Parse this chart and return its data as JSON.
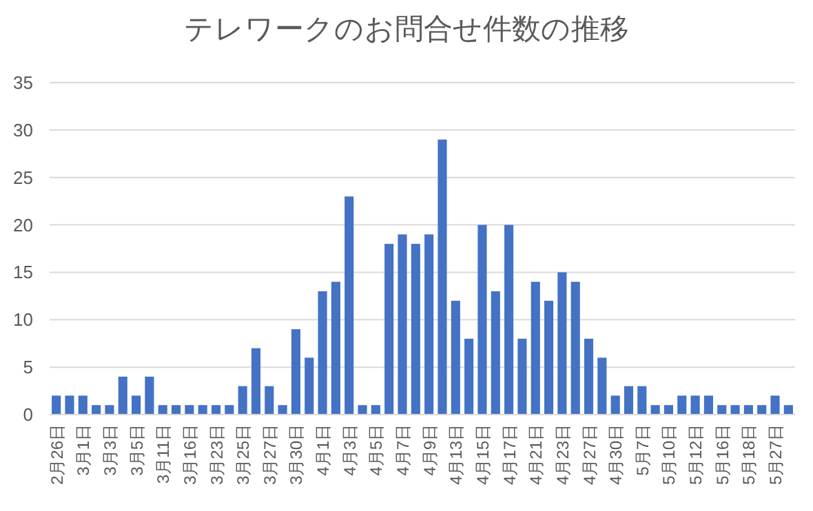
{
  "chart_data": {
    "type": "bar",
    "title": "テレワークのお問合せ件数の推移",
    "categories": [
      "2月26日",
      null,
      "3月1日",
      null,
      "3月3日",
      null,
      "3月5日",
      null,
      "3月11日",
      null,
      "3月16日",
      null,
      "3月23日",
      null,
      "3月25日",
      null,
      "3月27日",
      null,
      "3月30日",
      null,
      "4月1日",
      null,
      "4月3日",
      null,
      "4月5日",
      null,
      "4月7日",
      null,
      "4月9日",
      null,
      "4月13日",
      null,
      "4月15日",
      null,
      "4月17日",
      null,
      "4月21日",
      null,
      "4月23日",
      null,
      "4月27日",
      null,
      "4月30日",
      null,
      "5月7日",
      null,
      "5月10日",
      null,
      "5月12日",
      null,
      "5月16日",
      null,
      "5月18日",
      null,
      "5月27日",
      null
    ],
    "values": [
      2,
      2,
      2,
      1,
      1,
      4,
      2,
      4,
      1,
      1,
      1,
      1,
      1,
      1,
      3,
      7,
      3,
      1,
      9,
      6,
      13,
      14,
      23,
      1,
      1,
      18,
      19,
      18,
      19,
      29,
      12,
      8,
      20,
      13,
      20,
      8,
      14,
      12,
      15,
      14,
      8,
      6,
      2,
      3,
      3,
      1,
      1,
      2,
      2,
      2,
      1,
      1,
      1,
      1,
      2,
      1
    ],
    "color": "#4472c4",
    "ylim": [
      0,
      35
    ],
    "yticks": [
      0,
      5,
      10,
      15,
      20,
      25,
      30,
      35
    ],
    "grid": "y"
  }
}
